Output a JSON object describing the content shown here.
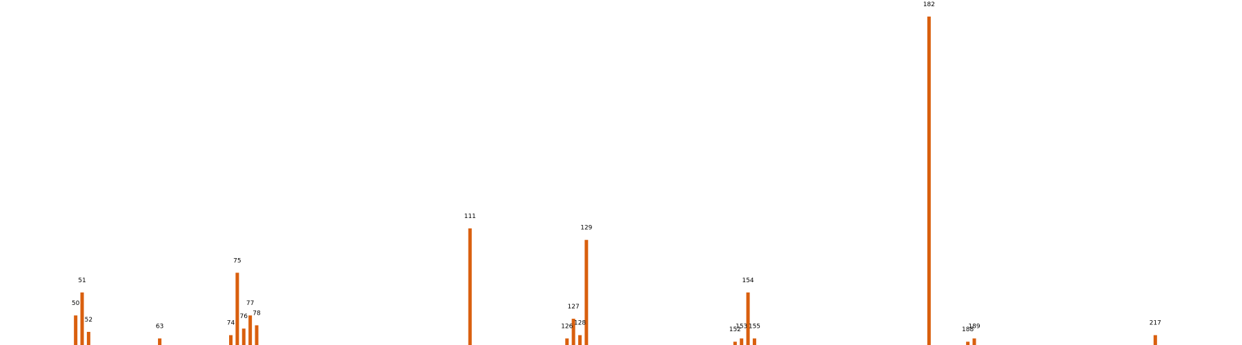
{
  "chart_data": {
    "type": "bar",
    "title": "",
    "xlabel": "",
    "ylabel": "",
    "grid": false,
    "legend": "none",
    "bar_color": "#d95f0e",
    "xlim": [
      42,
      225
    ],
    "ylim": [
      0,
      100
    ],
    "points": [
      {
        "x": 50,
        "label": "50",
        "value": 9
      },
      {
        "x": 51,
        "label": "51",
        "value": 16
      },
      {
        "x": 52,
        "label": "52",
        "value": 4
      },
      {
        "x": 63,
        "label": "63",
        "value": 2
      },
      {
        "x": 74,
        "label": "74",
        "value": 3
      },
      {
        "x": 75,
        "label": "75",
        "value": 22
      },
      {
        "x": 76,
        "label": "76",
        "value": 5
      },
      {
        "x": 77,
        "label": "77",
        "value": 9
      },
      {
        "x": 78,
        "label": "78",
        "value": 6
      },
      {
        "x": 111,
        "label": "111",
        "value": 35.5
      },
      {
        "x": 126,
        "label": "126",
        "value": 2
      },
      {
        "x": 127,
        "label": "127",
        "value": 8
      },
      {
        "x": 128,
        "label": "128",
        "value": 3
      },
      {
        "x": 129,
        "label": "129",
        "value": 32
      },
      {
        "x": 152,
        "label": "152",
        "value": 1
      },
      {
        "x": 153,
        "label": "153",
        "value": 2
      },
      {
        "x": 154,
        "label": "154",
        "value": 16
      },
      {
        "x": 155,
        "label": "155",
        "value": 2
      },
      {
        "x": 182,
        "label": "182",
        "value": 100
      },
      {
        "x": 188,
        "label": "188",
        "value": 1
      },
      {
        "x": 189,
        "label": "189",
        "value": 2
      },
      {
        "x": 217,
        "label": "217",
        "value": 3
      }
    ]
  }
}
